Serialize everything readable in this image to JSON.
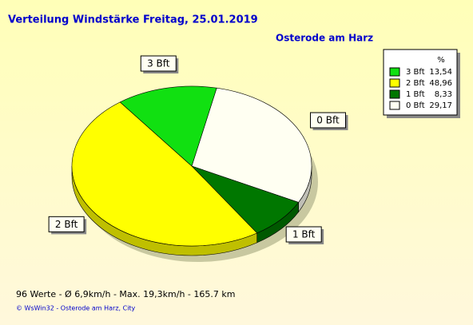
{
  "chart_data": {
    "type": "pie",
    "title": "Verteilung Windstärke  Freitag, 25.01.2019",
    "subtitle": "Osterode am Harz",
    "legend_header": "%",
    "categories": [
      "3 Bft",
      "2 Bft",
      "1 Bft",
      "0 Bft"
    ],
    "values": [
      13.54,
      48.96,
      8.33,
      29.17
    ],
    "value_labels": [
      "13,54",
      "48,96",
      "8,33",
      "29,17"
    ],
    "colors": [
      "#11e011",
      "#ffff00",
      "#007700",
      "#fffff2"
    ],
    "footer": "96 Werte   -   Ø 6,9km/h  -  Max. 19,3km/h   -   165.7 km",
    "copyright": "© WsWin32  -  Osterode am Harz, City"
  }
}
